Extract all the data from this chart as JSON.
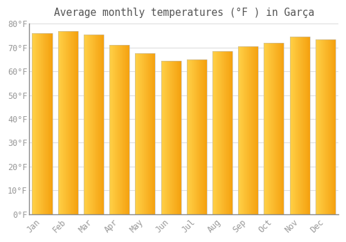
{
  "title": "Average monthly temperatures (°F ) in Garça",
  "months": [
    "Jan",
    "Feb",
    "Mar",
    "Apr",
    "May",
    "Jun",
    "Jul",
    "Aug",
    "Sep",
    "Oct",
    "Nov",
    "Dec"
  ],
  "values": [
    76,
    77,
    75.5,
    71,
    67.5,
    64.5,
    65,
    68.5,
    70.5,
    72,
    74.5,
    73.5
  ],
  "bar_color_left": "#FFD04A",
  "bar_color_right": "#F5A000",
  "bar_edge_color": "#CCCCCC",
  "background_color": "#FFFFFF",
  "grid_color": "#DDDDDD",
  "tick_color": "#999999",
  "title_color": "#555555",
  "ylim": [
    0,
    80
  ],
  "yticks": [
    0,
    10,
    20,
    30,
    40,
    50,
    60,
    70,
    80
  ],
  "ylabel_suffix": "°F",
  "title_fontsize": 10.5,
  "tick_fontsize": 8.5,
  "bar_width": 0.78,
  "n_gradient_steps": 50
}
